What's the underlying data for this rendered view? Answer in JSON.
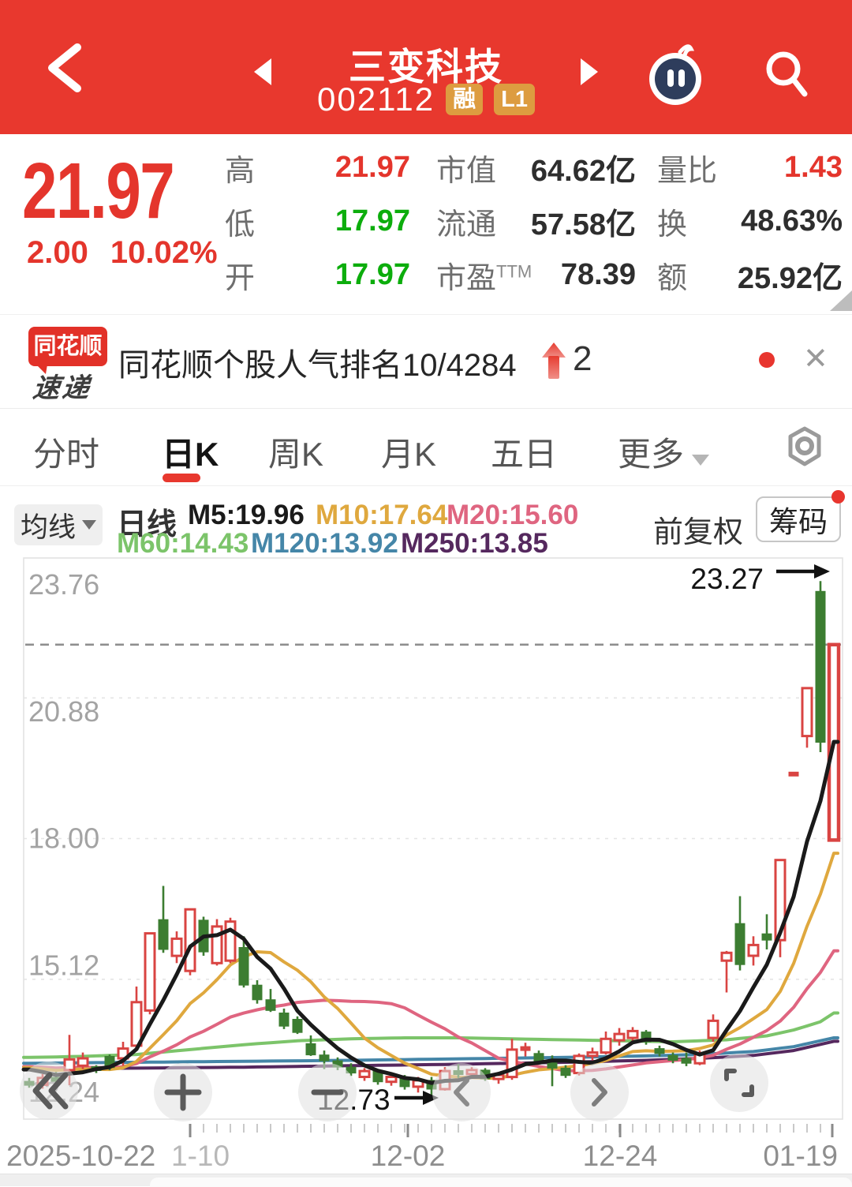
{
  "header": {
    "title": "三变科技",
    "code": "002112",
    "badge_rong": "融",
    "badge_l1": "L1"
  },
  "quote": {
    "price": "21.97",
    "change": "2.00",
    "change_pct": "10.02%",
    "col1": [
      {
        "label": "高",
        "value": "21.97",
        "cls": "red"
      },
      {
        "label": "低",
        "value": "17.97",
        "cls": "green"
      },
      {
        "label": "开",
        "value": "17.97",
        "cls": "green"
      }
    ],
    "col2": [
      {
        "label": "市值",
        "value": "64.62亿",
        "cls": ""
      },
      {
        "label": "流通",
        "value": "57.58亿",
        "cls": ""
      },
      {
        "label": "市盈",
        "sup": "TTM",
        "value": "78.39",
        "cls": ""
      }
    ],
    "col3": [
      {
        "label": "量比",
        "value": "1.43",
        "cls": "red"
      },
      {
        "label": "换",
        "value": "48.63%",
        "cls": ""
      },
      {
        "label": "额",
        "value": "25.92亿",
        "cls": ""
      }
    ]
  },
  "banner": {
    "logo_top": "同花顺",
    "logo_bottom": "速递",
    "text": "同花顺个股人气排名10/4284",
    "rank_delta": "2",
    "close_label": "✕"
  },
  "tabs": {
    "items": [
      "分时",
      "日K",
      "周K",
      "月K",
      "五日",
      "更多"
    ],
    "active_index": 1
  },
  "ma_toolbar": {
    "dropdown": "均线",
    "period": "日线",
    "row1": [
      {
        "text": "M5:19.96",
        "color": "#1a1a1a"
      },
      {
        "text": "M10:17.64",
        "color": "#dfa83e"
      },
      {
        "text": "M20:15.60",
        "color": "#df6580"
      }
    ],
    "row2": [
      {
        "text": "M60:14.43",
        "color": "#7cc46a"
      },
      {
        "text": "M120:13.92",
        "color": "#4586a8"
      },
      {
        "text": "M250:13.85",
        "color": "#55285e"
      }
    ],
    "adjust": "前复权",
    "chips_button": "筹码"
  },
  "chart_data": {
    "type": "candlestick",
    "period": "daily",
    "y_ticks": [
      23.76,
      20.88,
      18.0,
      15.12,
      12.24
    ],
    "y_tick_labels": [
      "23.76",
      "20.88",
      "18.00",
      "15.12",
      "12.24"
    ],
    "x_labels": [
      "2025-10-22",
      "1-10",
      "12-02",
      "12-24",
      "01-19"
    ],
    "high_annotation": {
      "text": "23.27",
      "value": 23.27
    },
    "low_annotation": {
      "text": "12.73",
      "value": 12.73
    },
    "last_price": 21.97,
    "candles": [
      [
        13.02,
        13.1,
        12.9,
        12.96
      ],
      [
        12.96,
        13.18,
        12.88,
        13.1
      ],
      [
        13.1,
        13.22,
        12.96,
        13.04
      ],
      [
        13.26,
        13.98,
        12.95,
        13.48
      ],
      [
        13.35,
        13.62,
        13.28,
        13.5
      ],
      [
        13.3,
        13.36,
        13.2,
        13.28
      ],
      [
        13.54,
        13.58,
        13.26,
        13.31
      ],
      [
        13.5,
        13.84,
        13.35,
        13.7
      ],
      [
        13.76,
        14.97,
        13.7,
        14.65
      ],
      [
        14.48,
        16.06,
        14.4,
        16.06
      ],
      [
        16.34,
        17.03,
        15.66,
        15.73
      ],
      [
        15.6,
        16.1,
        15.45,
        15.95
      ],
      [
        15.29,
        16.55,
        15.2,
        16.55
      ],
      [
        16.33,
        16.4,
        15.6,
        15.68
      ],
      [
        15.45,
        16.35,
        15.4,
        16.2
      ],
      [
        15.5,
        16.38,
        15.45,
        16.3
      ],
      [
        15.77,
        16.0,
        14.95,
        15.0
      ],
      [
        15.0,
        15.1,
        14.62,
        14.7
      ],
      [
        14.7,
        14.92,
        14.45,
        14.48
      ],
      [
        14.43,
        14.52,
        14.1,
        14.16
      ],
      [
        14.3,
        14.36,
        14.0,
        14.03
      ],
      [
        13.8,
        13.97,
        13.55,
        13.57
      ],
      [
        13.57,
        13.66,
        13.28,
        13.45
      ],
      [
        13.45,
        13.52,
        13.26,
        13.32
      ],
      [
        13.32,
        13.4,
        13.14,
        13.2
      ],
      [
        13.12,
        13.3,
        13.04,
        13.24
      ],
      [
        13.24,
        13.28,
        12.96,
        13.02
      ],
      [
        13.02,
        13.2,
        12.94,
        13.12
      ],
      [
        13.12,
        13.16,
        12.86,
        12.92
      ],
      [
        12.92,
        13.12,
        12.8,
        13.05
      ],
      [
        13.05,
        13.12,
        12.73,
        12.87
      ],
      [
        12.87,
        13.32,
        12.84,
        13.24
      ],
      [
        13.24,
        13.38,
        13.1,
        13.18
      ],
      [
        13.18,
        13.32,
        13.08,
        13.26
      ],
      [
        13.26,
        13.3,
        13.04,
        13.08
      ],
      [
        13.08,
        13.22,
        12.98,
        13.16
      ],
      [
        13.12,
        13.9,
        13.06,
        13.68
      ],
      [
        13.68,
        13.82,
        13.54,
        13.72
      ],
      [
        13.6,
        13.66,
        13.38,
        13.42
      ],
      [
        13.45,
        13.56,
        12.93,
        13.3
      ],
      [
        13.3,
        13.36,
        13.1,
        13.15
      ],
      [
        13.2,
        13.6,
        13.15,
        13.55
      ],
      [
        13.55,
        13.72,
        13.46,
        13.62
      ],
      [
        13.62,
        14.05,
        13.58,
        13.9
      ],
      [
        13.87,
        14.12,
        13.76,
        14.0
      ],
      [
        13.92,
        14.14,
        13.86,
        14.06
      ],
      [
        14.04,
        14.08,
        13.78,
        13.84
      ],
      [
        13.7,
        13.76,
        13.54,
        13.6
      ],
      [
        13.56,
        13.62,
        13.4,
        13.46
      ],
      [
        13.5,
        13.62,
        13.34,
        13.4
      ],
      [
        13.4,
        13.66,
        13.36,
        13.6
      ],
      [
        13.92,
        14.4,
        13.84,
        14.27
      ],
      [
        15.5,
        15.7,
        14.85,
        15.66
      ],
      [
        16.26,
        16.82,
        15.3,
        15.42
      ],
      [
        15.6,
        16.0,
        15.4,
        15.82
      ],
      [
        16.05,
        16.45,
        15.73,
        15.92
      ],
      [
        15.92,
        17.56,
        15.57,
        17.56
      ],
      [
        19.32,
        19.32,
        19.32,
        19.32
      ],
      [
        20.1,
        21.1,
        19.86,
        21.08
      ],
      [
        23.06,
        23.27,
        19.77,
        19.97
      ],
      [
        17.97,
        21.97,
        17.97,
        21.97
      ]
    ],
    "ma_periods": {
      "M5": 5,
      "M10": 10,
      "M20": 20
    },
    "ma_current": {
      "M5": 19.96,
      "M10": 17.64,
      "M20": 15.6,
      "M60": 14.43,
      "M120": 13.92,
      "M250": 13.85
    },
    "ma_overlay_points": {
      "M60": [
        [
          0,
          13.52
        ],
        [
          4,
          13.54
        ],
        [
          8,
          13.58
        ],
        [
          12,
          13.68
        ],
        [
          16,
          13.78
        ],
        [
          20,
          13.86
        ],
        [
          24,
          13.9
        ],
        [
          28,
          13.92
        ],
        [
          32,
          13.92
        ],
        [
          36,
          13.9
        ],
        [
          40,
          13.88
        ],
        [
          44,
          13.86
        ],
        [
          48,
          13.84
        ],
        [
          52,
          13.88
        ],
        [
          55,
          13.96
        ],
        [
          57,
          14.08
        ],
        [
          59,
          14.25
        ],
        [
          60,
          14.43
        ]
      ],
      "M120": [
        [
          0,
          13.4
        ],
        [
          8,
          13.42
        ],
        [
          16,
          13.44
        ],
        [
          24,
          13.46
        ],
        [
          32,
          13.49
        ],
        [
          40,
          13.52
        ],
        [
          46,
          13.55
        ],
        [
          50,
          13.58
        ],
        [
          54,
          13.64
        ],
        [
          57,
          13.74
        ],
        [
          60,
          13.92
        ]
      ],
      "M250": [
        [
          0,
          13.28
        ],
        [
          8,
          13.3
        ],
        [
          16,
          13.32
        ],
        [
          24,
          13.35
        ],
        [
          32,
          13.38
        ],
        [
          40,
          13.42
        ],
        [
          46,
          13.46
        ],
        [
          50,
          13.5
        ],
        [
          54,
          13.56
        ],
        [
          57,
          13.66
        ],
        [
          60,
          13.85
        ]
      ]
    },
    "colors": {
      "up": "#d94442",
      "down": "#3c7d31",
      "M5": "#1a1a1a",
      "M10": "#dfa83e",
      "M20": "#df6580",
      "M60": "#7cc46a",
      "M120": "#4586a8",
      "M250": "#55285e",
      "accent_red": "#e8382e",
      "value_green": "#0cad0c"
    }
  }
}
